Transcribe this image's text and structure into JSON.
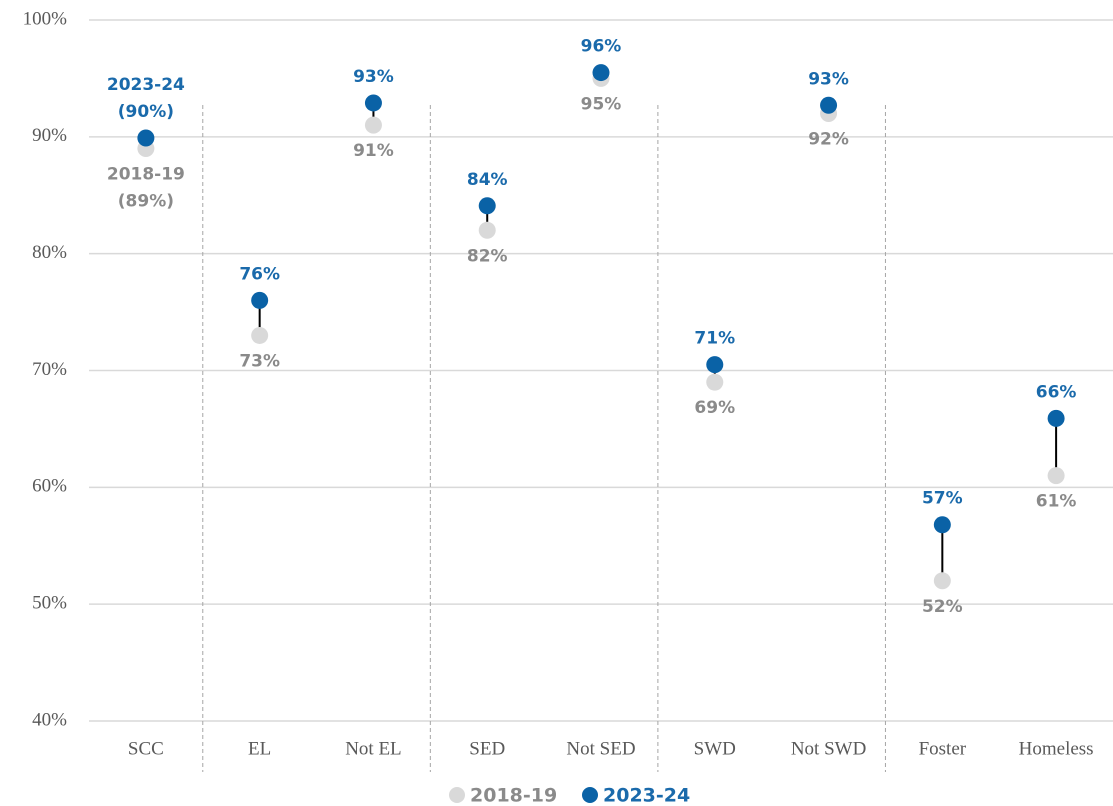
{
  "chart_data": {
    "type": "dumbbell",
    "categories": [
      "SCC",
      "EL",
      "Not EL",
      "SED",
      "Not SED",
      "SWD",
      "Not SWD",
      "Foster",
      "Homeless"
    ],
    "series": [
      {
        "name": "2018-19",
        "color": "#d9d9d9",
        "label_color": "#8a8a8a",
        "values": [
          89,
          73,
          91,
          82,
          95,
          69,
          92,
          52,
          61
        ],
        "value_labels": [
          "2018-19 (89%)",
          "73%",
          "91%",
          "82%",
          "95%",
          "69%",
          "92%",
          "52%",
          "61%"
        ]
      },
      {
        "name": "2023-24",
        "color": "#0a62a6",
        "label_color": "#1a6aab",
        "values": [
          89.9,
          76,
          92.9,
          84.1,
          95.5,
          70.5,
          92.7,
          56.8,
          65.9
        ],
        "value_labels": [
          "2023-24 (90%)",
          "76%",
          "93%",
          "84%",
          "96%",
          "71%",
          "93%",
          "57%",
          "66%"
        ]
      }
    ],
    "ylim": [
      40,
      100
    ],
    "yticks": [
      {
        "value": 40,
        "label": "40%"
      },
      {
        "value": 50,
        "label": "50%"
      },
      {
        "value": 60,
        "label": "60%"
      },
      {
        "value": 70,
        "label": "70%"
      },
      {
        "value": 80,
        "label": "80%"
      },
      {
        "value": 90,
        "label": "90%"
      },
      {
        "value": 100,
        "label": "100%"
      }
    ],
    "grid": true,
    "legend": "bottom"
  }
}
